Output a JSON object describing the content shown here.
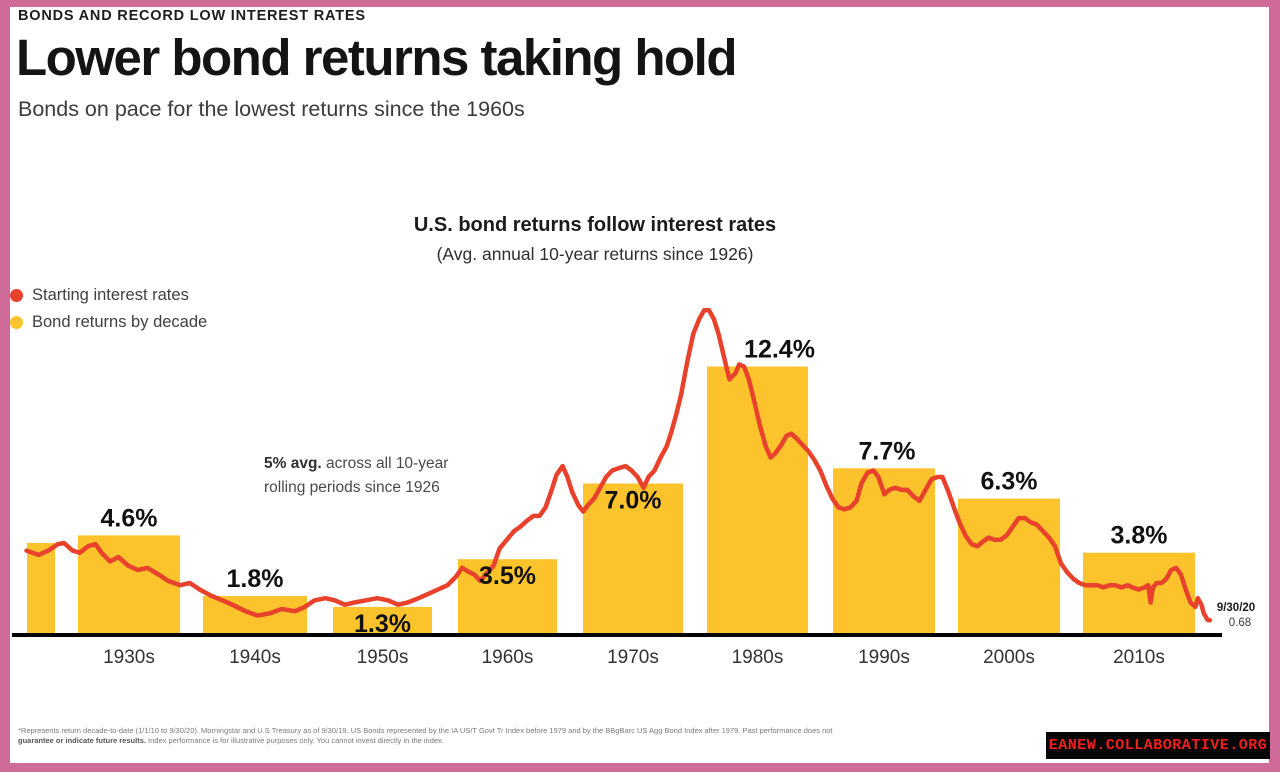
{
  "frame": {
    "border_color": "#cf6b98"
  },
  "header": {
    "kicker": "BONDS AND RECORD LOW INTEREST RATES",
    "title": "Lower bond returns taking hold",
    "subtitle": "Bonds on pace for the lowest returns since the 1960s"
  },
  "chart_data": {
    "type": "bar+line combo",
    "title": "U.S. bond returns follow interest rates",
    "subtitle": "(Avg. annual 10-year returns since 1926)",
    "grid": false,
    "ylim": [
      0,
      15.5
    ],
    "legend_position": "upper-left",
    "legend": [
      {
        "label": "Starting interest rates",
        "color": "#e8412c"
      },
      {
        "label": "Bond returns by decade",
        "color": "#fcc32c"
      }
    ],
    "categories": [
      "1930s",
      "1940s",
      "1950s",
      "1960s",
      "1970s",
      "1980s",
      "1990s",
      "2000s",
      "2010s"
    ],
    "bar_series": {
      "name": "Bond returns by decade",
      "color": "#fcc32c",
      "values": [
        4.6,
        1.8,
        1.3,
        3.5,
        7.0,
        12.4,
        7.7,
        6.3,
        3.8
      ],
      "labels": [
        "4.6%",
        "1.8%",
        "1.3%",
        "3.5%",
        "7.0%",
        "12.4%",
        "7.7%",
        "6.3%",
        "3.8%"
      ],
      "label_position": [
        "above",
        "above",
        "inside",
        "inside",
        "inside",
        "above",
        "above",
        "above",
        "above"
      ],
      "label_x_offset": [
        0,
        0,
        0,
        0,
        0,
        22,
        3,
        0,
        0
      ],
      "partial_leading_bar_value": 4.25
    },
    "annotation": {
      "bold_lead": "5% avg.",
      "line1_rest": " across all 10-year",
      "line2": "rolling periods since 1926"
    },
    "line_series": {
      "name": "Starting interest rates",
      "color": "#e8412c",
      "x_as_fraction_of_time_axis": true,
      "end_label": {
        "date": "9/30/20",
        "value": "0.68"
      },
      "points": [
        [
          0.012,
          3.9
        ],
        [
          0.022,
          3.7
        ],
        [
          0.03,
          3.9
        ],
        [
          0.038,
          4.2
        ],
        [
          0.043,
          4.25
        ],
        [
          0.05,
          3.9
        ],
        [
          0.056,
          3.8
        ],
        [
          0.063,
          4.1
        ],
        [
          0.069,
          4.2
        ],
        [
          0.074,
          3.8
        ],
        [
          0.081,
          3.4
        ],
        [
          0.088,
          3.6
        ],
        [
          0.096,
          3.2
        ],
        [
          0.104,
          3.0
        ],
        [
          0.112,
          3.1
        ],
        [
          0.121,
          2.8
        ],
        [
          0.129,
          2.5
        ],
        [
          0.139,
          2.3
        ],
        [
          0.147,
          2.4
        ],
        [
          0.155,
          2.1
        ],
        [
          0.165,
          1.8
        ],
        [
          0.174,
          1.6
        ],
        [
          0.182,
          1.4
        ],
        [
          0.193,
          1.1
        ],
        [
          0.203,
          0.9
        ],
        [
          0.213,
          1.0
        ],
        [
          0.223,
          1.2
        ],
        [
          0.234,
          1.1
        ],
        [
          0.242,
          1.3
        ],
        [
          0.25,
          1.6
        ],
        [
          0.259,
          1.7
        ],
        [
          0.267,
          1.6
        ],
        [
          0.275,
          1.4
        ],
        [
          0.283,
          1.5
        ],
        [
          0.292,
          1.6
        ],
        [
          0.302,
          1.7
        ],
        [
          0.311,
          1.6
        ],
        [
          0.319,
          1.4
        ],
        [
          0.327,
          1.5
        ],
        [
          0.336,
          1.7
        ],
        [
          0.344,
          1.9
        ],
        [
          0.352,
          2.1
        ],
        [
          0.36,
          2.3
        ],
        [
          0.367,
          2.7
        ],
        [
          0.372,
          3.1
        ],
        [
          0.378,
          2.9
        ],
        [
          0.382,
          2.8
        ],
        [
          0.387,
          2.5
        ],
        [
          0.393,
          2.9
        ],
        [
          0.398,
          3.2
        ],
        [
          0.403,
          4.0
        ],
        [
          0.409,
          4.4
        ],
        [
          0.415,
          4.8
        ],
        [
          0.42,
          5.0
        ],
        [
          0.426,
          5.3
        ],
        [
          0.431,
          5.5
        ],
        [
          0.436,
          5.5
        ],
        [
          0.441,
          5.9
        ],
        [
          0.446,
          6.7
        ],
        [
          0.45,
          7.4
        ],
        [
          0.455,
          7.8
        ],
        [
          0.459,
          7.3
        ],
        [
          0.463,
          6.6
        ],
        [
          0.468,
          6.0
        ],
        [
          0.472,
          5.7
        ],
        [
          0.476,
          6.0
        ],
        [
          0.481,
          6.3
        ],
        [
          0.486,
          6.8
        ],
        [
          0.491,
          7.3
        ],
        [
          0.496,
          7.6
        ],
        [
          0.501,
          7.7
        ],
        [
          0.507,
          7.8
        ],
        [
          0.512,
          7.6
        ],
        [
          0.517,
          7.3
        ],
        [
          0.522,
          6.8
        ],
        [
          0.526,
          7.3
        ],
        [
          0.531,
          7.6
        ],
        [
          0.536,
          8.2
        ],
        [
          0.541,
          8.7
        ],
        [
          0.545,
          9.4
        ],
        [
          0.549,
          10.2
        ],
        [
          0.553,
          11.1
        ],
        [
          0.558,
          12.6
        ],
        [
          0.563,
          13.9
        ],
        [
          0.568,
          14.6
        ],
        [
          0.572,
          15.0
        ],
        [
          0.576,
          15.0
        ],
        [
          0.58,
          14.6
        ],
        [
          0.584,
          13.9
        ],
        [
          0.589,
          12.7
        ],
        [
          0.593,
          11.8
        ],
        [
          0.598,
          12.1
        ],
        [
          0.601,
          12.5
        ],
        [
          0.605,
          12.4
        ],
        [
          0.609,
          11.8
        ],
        [
          0.613,
          10.9
        ],
        [
          0.618,
          9.7
        ],
        [
          0.623,
          8.7
        ],
        [
          0.627,
          8.2
        ],
        [
          0.631,
          8.4
        ],
        [
          0.636,
          8.8
        ],
        [
          0.64,
          9.2
        ],
        [
          0.644,
          9.3
        ],
        [
          0.648,
          9.1
        ],
        [
          0.653,
          8.8
        ],
        [
          0.658,
          8.5
        ],
        [
          0.663,
          8.1
        ],
        [
          0.668,
          7.6
        ],
        [
          0.673,
          6.9
        ],
        [
          0.678,
          6.3
        ],
        [
          0.683,
          5.9
        ],
        [
          0.688,
          5.8
        ],
        [
          0.693,
          5.9
        ],
        [
          0.698,
          6.2
        ],
        [
          0.702,
          7.0
        ],
        [
          0.707,
          7.5
        ],
        [
          0.712,
          7.6
        ],
        [
          0.716,
          7.3
        ],
        [
          0.721,
          6.5
        ],
        [
          0.725,
          6.7
        ],
        [
          0.73,
          6.8
        ],
        [
          0.735,
          6.7
        ],
        [
          0.74,
          6.7
        ],
        [
          0.745,
          6.4
        ],
        [
          0.75,
          6.2
        ],
        [
          0.755,
          6.7
        ],
        [
          0.76,
          7.2
        ],
        [
          0.765,
          7.3
        ],
        [
          0.769,
          7.3
        ],
        [
          0.774,
          6.6
        ],
        [
          0.779,
          5.8
        ],
        [
          0.783,
          5.2
        ],
        [
          0.788,
          4.6
        ],
        [
          0.793,
          4.2
        ],
        [
          0.798,
          4.1
        ],
        [
          0.802,
          4.3
        ],
        [
          0.807,
          4.5
        ],
        [
          0.812,
          4.4
        ],
        [
          0.817,
          4.4
        ],
        [
          0.822,
          4.6
        ],
        [
          0.827,
          5.0
        ],
        [
          0.832,
          5.4
        ],
        [
          0.837,
          5.4
        ],
        [
          0.842,
          5.2
        ],
        [
          0.847,
          5.1
        ],
        [
          0.852,
          4.8
        ],
        [
          0.857,
          4.5
        ],
        [
          0.862,
          4.1
        ],
        [
          0.867,
          3.3
        ],
        [
          0.872,
          2.9
        ],
        [
          0.877,
          2.6
        ],
        [
          0.882,
          2.4
        ],
        [
          0.887,
          2.3
        ],
        [
          0.892,
          2.3
        ],
        [
          0.897,
          2.3
        ],
        [
          0.902,
          2.2
        ],
        [
          0.907,
          2.3
        ],
        [
          0.912,
          2.3
        ],
        [
          0.917,
          2.2
        ],
        [
          0.922,
          2.3
        ],
        [
          0.926,
          2.2
        ],
        [
          0.931,
          2.1
        ],
        [
          0.936,
          2.2
        ],
        [
          0.939,
          2.3
        ],
        [
          0.941,
          1.5
        ],
        [
          0.943,
          2.2
        ],
        [
          0.946,
          2.4
        ],
        [
          0.95,
          2.4
        ],
        [
          0.954,
          2.6
        ],
        [
          0.958,
          3.0
        ],
        [
          0.962,
          3.1
        ],
        [
          0.966,
          2.8
        ],
        [
          0.97,
          2.1
        ],
        [
          0.974,
          1.5
        ],
        [
          0.978,
          1.3
        ],
        [
          0.98,
          1.7
        ],
        [
          0.983,
          1.4
        ],
        [
          0.985,
          1.0
        ],
        [
          0.988,
          0.7
        ],
        [
          0.99,
          0.68
        ]
      ]
    }
  },
  "footnote": {
    "line1": "*Represents return decade-to-date (1/1/10 to 9/30/20).  Morningstar and U.S Treasury as of 9/30/19. US Bonds represented by the IA US/T Govt Tr Index before 1979 and by the BBgBarc US Agg Bond Index after 1979. Past performance does not",
    "line2_bold": "guarantee or indicate future results.",
    "line2_rest": " Index performance is for illustrative purposes only. You cannot invest directly in the index."
  },
  "watermark": {
    "text": "EANEW.COLLABORATIVE.ORG",
    "text_color": "#f21d1d",
    "bg": "#070707"
  }
}
